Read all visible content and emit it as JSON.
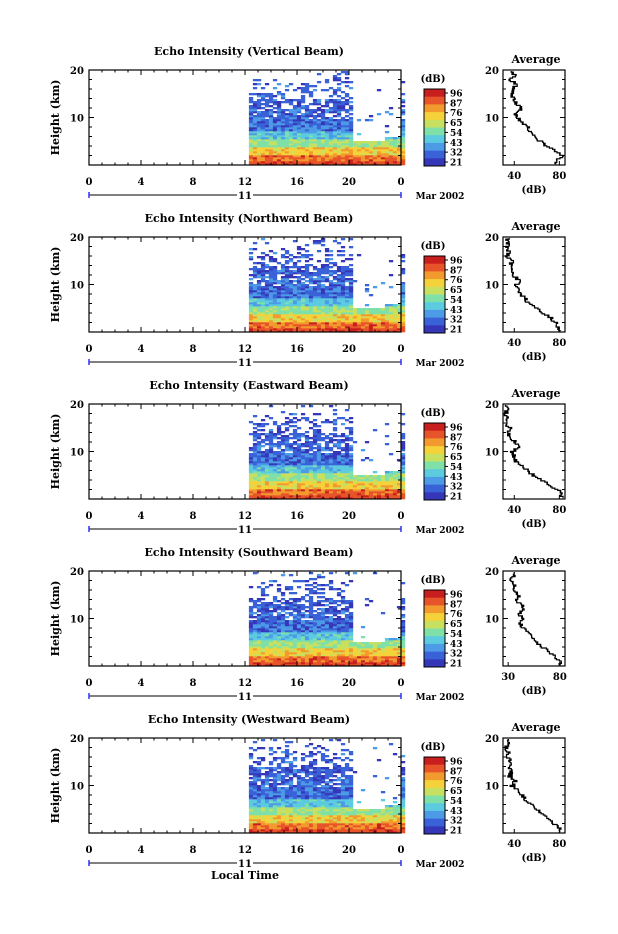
{
  "xlabel": "Local Time",
  "ylabel": "Height (km)",
  "date_label": "Mar 2002",
  "day_label": "11",
  "cbar_label": "(dB)",
  "avg_title": "Average",
  "avg_xlabel": "(dB)",
  "colors": {
    "scale": [
      "#3537b8",
      "#3a62d8",
      "#4d9be6",
      "#5ccbe0",
      "#7fe0a8",
      "#c8e060",
      "#f5d23a",
      "#f39a2e",
      "#e8542a",
      "#c81e1e"
    ]
  },
  "chart_data": [
    {
      "type": "heatmap",
      "title": "Echo Intensity (Vertical Beam)",
      "x_ticks": [
        "0",
        "4",
        "8",
        "12",
        "16",
        "20",
        "0"
      ],
      "xlim": [
        0,
        24
      ],
      "y_ticks": [
        "20",
        "10"
      ],
      "ylim": [
        0,
        20
      ],
      "data_start_hour": 12.3,
      "colorbar_ticks": [
        "96",
        "87",
        "76",
        "65",
        "54",
        "43",
        "32",
        "21"
      ],
      "avg_x_ticks": [
        "40",
        "80"
      ],
      "avg_xlim": [
        30,
        85
      ],
      "avg_profile": {
        "height_km": [
          1,
          2,
          3,
          4,
          5,
          6,
          7,
          8,
          9,
          10,
          11,
          12,
          13,
          14,
          15,
          16,
          17,
          18,
          19,
          20
        ],
        "db": [
          78,
          82,
          76,
          70,
          64,
          58,
          55,
          52,
          48,
          43,
          40,
          46,
          42,
          40,
          38,
          39,
          42,
          37,
          40,
          36
        ]
      }
    },
    {
      "type": "heatmap",
      "title": "Echo Intensity (Northward Beam)",
      "x_ticks": [
        "0",
        "4",
        "8",
        "12",
        "16",
        "20",
        "0"
      ],
      "xlim": [
        0,
        24
      ],
      "y_ticks": [
        "20",
        "10"
      ],
      "ylim": [
        0,
        20
      ],
      "data_start_hour": 12.3,
      "colorbar_ticks": [
        "96",
        "87",
        "76",
        "65",
        "54",
        "43",
        "32",
        "21"
      ],
      "avg_x_ticks": [
        "40",
        "80"
      ],
      "avg_xlim": [
        30,
        85
      ],
      "avg_profile": {
        "height_km": [
          1,
          2,
          3,
          4,
          5,
          6,
          7,
          8,
          9,
          10,
          11,
          12,
          13,
          14,
          15,
          16,
          17,
          18,
          19,
          20
        ],
        "db": [
          80,
          77,
          73,
          66,
          60,
          54,
          50,
          46,
          44,
          42,
          44,
          40,
          38,
          36,
          38,
          34,
          36,
          33,
          35,
          34
        ]
      }
    },
    {
      "type": "heatmap",
      "title": "Echo Intensity (Eastward Beam)",
      "x_ticks": [
        "0",
        "4",
        "8",
        "12",
        "16",
        "20",
        "0"
      ],
      "xlim": [
        0,
        24
      ],
      "y_ticks": [
        "20",
        "10"
      ],
      "ylim": [
        0,
        20
      ],
      "data_start_hour": 12.3,
      "colorbar_ticks": [
        "96",
        "87",
        "76",
        "65",
        "54",
        "43",
        "32",
        "21"
      ],
      "avg_x_ticks": [
        "40",
        "80"
      ],
      "avg_xlim": [
        30,
        85
      ],
      "avg_profile": {
        "height_km": [
          1,
          2,
          3,
          4,
          5,
          6,
          7,
          8,
          9,
          10,
          11,
          12,
          13,
          14,
          15,
          16,
          17,
          18,
          19,
          20
        ],
        "db": [
          82,
          79,
          72,
          65,
          58,
          52,
          47,
          42,
          40,
          38,
          44,
          41,
          37,
          35,
          36,
          33,
          35,
          32,
          34,
          33
        ]
      }
    },
    {
      "type": "heatmap",
      "title": "Echo Intensity (Southward Beam)",
      "x_ticks": [
        "0",
        "4",
        "8",
        "12",
        "16",
        "20",
        "0"
      ],
      "xlim": [
        0,
        24
      ],
      "y_ticks": [
        "20",
        "10"
      ],
      "ylim": [
        0,
        20
      ],
      "data_start_hour": 12.3,
      "colorbar_ticks": [
        "96",
        "87",
        "76",
        "65",
        "54",
        "43",
        "32",
        "21"
      ],
      "avg_x_ticks": [
        "30",
        "80"
      ],
      "avg_xlim": [
        25,
        85
      ],
      "avg_profile": {
        "height_km": [
          1,
          2,
          3,
          4,
          5,
          6,
          7,
          8,
          9,
          10,
          11,
          12,
          13,
          14,
          15,
          16,
          17,
          18,
          19,
          20
        ],
        "db": [
          80,
          76,
          70,
          64,
          58,
          53,
          50,
          45,
          42,
          44,
          40,
          46,
          43,
          38,
          40,
          36,
          37,
          33,
          35,
          34
        ]
      }
    },
    {
      "type": "heatmap",
      "title": "Echo Intensity (Westward Beam)",
      "x_ticks": [
        "0",
        "4",
        "8",
        "12",
        "16",
        "20",
        "0"
      ],
      "xlim": [
        0,
        24
      ],
      "y_ticks": [
        "20",
        "10"
      ],
      "ylim": [
        0,
        20
      ],
      "data_start_hour": 12.3,
      "colorbar_ticks": [
        "96",
        "87",
        "76",
        "65",
        "54",
        "43",
        "32",
        "21"
      ],
      "avg_x_ticks": [
        "40",
        "80"
      ],
      "avg_xlim": [
        30,
        85
      ],
      "avg_profile": {
        "height_km": [
          1,
          2,
          3,
          4,
          5,
          6,
          7,
          8,
          9,
          10,
          11,
          12,
          13,
          14,
          15,
          16,
          17,
          18,
          19,
          20
        ],
        "db": [
          80,
          76,
          71,
          66,
          60,
          55,
          50,
          47,
          43,
          38,
          41,
          36,
          38,
          35,
          37,
          34,
          35,
          33,
          34,
          33
        ]
      }
    }
  ]
}
